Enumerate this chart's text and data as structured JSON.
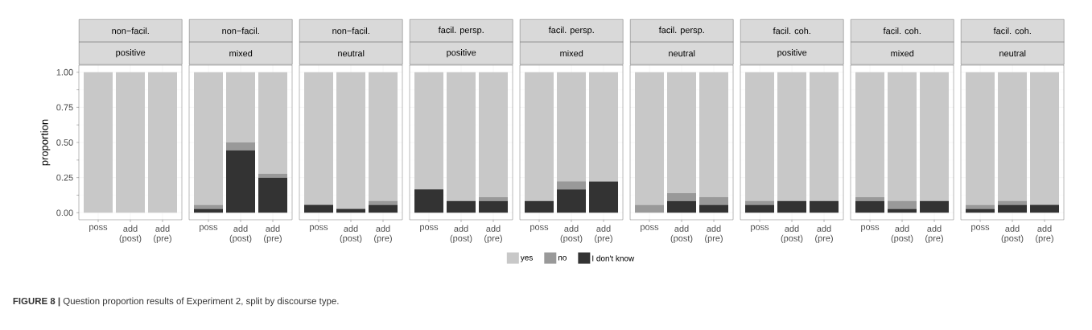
{
  "chart_data": [
    {
      "type": "bar",
      "stacked": true,
      "title": "non−facil.",
      "subtitle": "positive",
      "ylabel": "proportion",
      "categories": [
        "poss",
        "add (post)",
        "add (pre)"
      ],
      "series": [
        {
          "color": "#333333",
          "values": [
            0,
            0,
            0
          ]
        },
        {
          "color": "#999999",
          "values": [
            0,
            0,
            0
          ]
        },
        {
          "color": "#c8c8c8",
          "values": [
            1,
            1,
            1
          ]
        }
      ],
      "ylim": [
        -0.05,
        1.05
      ],
      "yticks": [
        {
          "value": 0,
          "label": "0.00"
        },
        {
          "value": 0.25,
          "label": "0.25"
        },
        {
          "value": 0.5,
          "label": "0.50"
        },
        {
          "value": 0.75,
          "label": "0.75"
        },
        {
          "value": 1,
          "label": "1.00"
        }
      ],
      "grid": true,
      "annotations": [
        "**FIGURE 8 |** Question proportion results of Experiment 2, split by discourse type."
      ]
    },
    {
      "type": "bar",
      "stacked": true,
      "title": "non−facil.",
      "subtitle": "mixed",
      "categories": [
        "poss",
        "add (post)",
        "add (pre)"
      ],
      "series": [
        {
          "color": "#333333",
          "values": [
            0.028,
            0.444,
            0.25
          ]
        },
        {
          "color": "#999999",
          "values": [
            0.028,
            0.056,
            0.028
          ]
        },
        {
          "color": "#c8c8c8",
          "values": [
            0.944,
            0.5,
            0.722
          ]
        }
      ],
      "ylim": [
        -0.05,
        1.05
      ],
      "yticks": [
        0,
        0.25,
        0.5,
        0.75,
        1
      ],
      "grid": true,
      "tick_labels": "x"
    },
    {
      "type": "bar",
      "stacked": true,
      "title": "non−facil.",
      "subtitle": "neutral",
      "categories": [
        "poss",
        "add (post)",
        "add (pre)"
      ],
      "series": [
        {
          "color": "#333333",
          "values": [
            0.056,
            0.028,
            0.056
          ]
        },
        {
          "color": "#999999",
          "values": [
            0,
            0,
            0.028
          ]
        },
        {
          "color": "#c8c8c8",
          "values": [
            0.944,
            0.972,
            0.916
          ]
        }
      ],
      "ylim": [
        -0.05,
        1.05
      ],
      "yticks": [
        0,
        0.25,
        0.5,
        0.75,
        1
      ],
      "grid": true,
      "tick_labels": "x"
    },
    {
      "type": "bar",
      "stacked": true,
      "title": "facil. persp.",
      "subtitle": "positive",
      "categories": [
        "poss",
        "add (post)",
        "add (pre)"
      ],
      "series": [
        {
          "color": "#333333",
          "values": [
            0.167,
            0.083,
            0.083
          ]
        },
        {
          "color": "#999999",
          "values": [
            0,
            0,
            0.028
          ]
        },
        {
          "color": "#c8c8c8",
          "values": [
            0.833,
            0.917,
            0.889
          ]
        }
      ],
      "ylim": [
        -0.05,
        1.05
      ],
      "yticks": [
        0,
        0.25,
        0.5,
        0.75,
        1
      ],
      "grid": true,
      "tick_labels": "x"
    },
    {
      "type": "bar",
      "stacked": true,
      "title": "facil. persp.",
      "subtitle": "mixed",
      "categories": [
        "poss",
        "add (post)",
        "add (pre)"
      ],
      "series": [
        {
          "name": "I don't know",
          "color": "#333333",
          "values": [
            0.083,
            0.167,
            0.222
          ]
        },
        {
          "name": "no",
          "color": "#999999",
          "values": [
            0,
            0.056,
            0
          ]
        },
        {
          "name": "yes",
          "color": "#c8c8c8",
          "values": [
            0.917,
            0.777,
            0.778
          ]
        }
      ],
      "ylim": [
        -0.05,
        1.05
      ],
      "yticks": [
        0,
        0.25,
        0.5,
        0.75,
        1
      ],
      "grid": true,
      "tick_labels": "x",
      "legend": "bottom"
    },
    {
      "type": "bar",
      "stacked": true,
      "title": "facil. persp.",
      "subtitle": "neutral",
      "categories": [
        "poss",
        "add (post)",
        "add (pre)"
      ],
      "series": [
        {
          "color": "#333333",
          "values": [
            0,
            0.083,
            0.056
          ]
        },
        {
          "color": "#999999",
          "values": [
            0.056,
            0.056,
            0.056
          ]
        },
        {
          "color": "#c8c8c8",
          "values": [
            0.944,
            0.861,
            0.888
          ]
        }
      ],
      "ylim": [
        -0.05,
        1.05
      ],
      "yticks": [
        0,
        0.25,
        0.5,
        0.75,
        1
      ],
      "grid": true,
      "tick_labels": "x"
    },
    {
      "type": "bar",
      "stacked": true,
      "title": "facil. coh.",
      "subtitle": "positive",
      "categories": [
        "poss",
        "add (post)",
        "add (pre)"
      ],
      "series": [
        {
          "color": "#333333",
          "values": [
            0.056,
            0.083,
            0.083
          ]
        },
        {
          "color": "#999999",
          "values": [
            0.028,
            0,
            0
          ]
        },
        {
          "color": "#c8c8c8",
          "values": [
            0.916,
            0.917,
            0.917
          ]
        }
      ],
      "ylim": [
        -0.05,
        1.05
      ],
      "yticks": [
        0,
        0.25,
        0.5,
        0.75,
        1
      ],
      "grid": true,
      "tick_labels": "x"
    },
    {
      "type": "bar",
      "stacked": true,
      "title": "facil. coh.",
      "subtitle": "mixed",
      "categories": [
        "poss",
        "add (post)",
        "add (pre)"
      ],
      "series": [
        {
          "color": "#333333",
          "values": [
            0.083,
            0.028,
            0.083
          ]
        },
        {
          "color": "#999999",
          "values": [
            0.028,
            0.056,
            0
          ]
        },
        {
          "color": "#c8c8c8",
          "values": [
            0.889,
            0.916,
            0.917
          ]
        }
      ],
      "ylim": [
        -0.05,
        1.05
      ],
      "yticks": [
        0,
        0.25,
        0.5,
        0.75,
        1
      ],
      "grid": true,
      "tick_labels": "x"
    },
    {
      "type": "bar",
      "stacked": true,
      "title": "facil. coh.",
      "subtitle": "neutral",
      "categories": [
        "poss",
        "add (post)",
        "add (pre)"
      ],
      "series": [
        {
          "color": "#333333",
          "values": [
            0.028,
            0.056,
            0.056
          ]
        },
        {
          "color": "#999999",
          "values": [
            0.028,
            0.028,
            0
          ]
        },
        {
          "color": "#c8c8c8",
          "values": [
            0.944,
            0.916,
            0.944
          ]
        }
      ],
      "ylim": [
        -0.05,
        1.05
      ],
      "yticks": [
        0,
        0.25,
        0.5,
        0.75,
        1
      ],
      "grid": true,
      "tick_labels": "x"
    }
  ]
}
